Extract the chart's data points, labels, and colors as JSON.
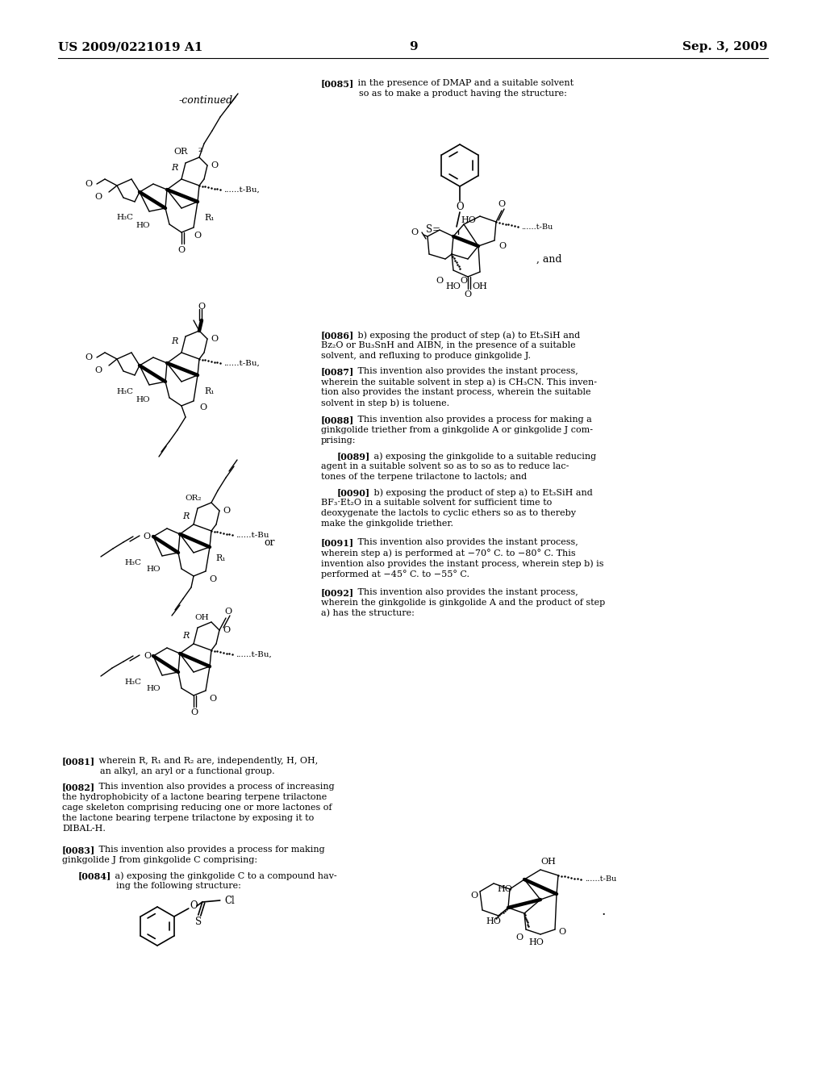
{
  "page_header_left": "US 2009/0221019 A1",
  "page_header_right": "Sep. 3, 2009",
  "page_number": "9",
  "background_color": "#ffffff",
  "text_color": "#000000",
  "font_size_header": 11,
  "font_size_body": 8.0,
  "font_size_small": 7.0,
  "continued_label": "-continued",
  "par_0081_bold": "[0081]",
  "par_0081_text": "   wherein R, R₁ and R₂ are, independently, H, OH,\n         an alkyl, an aryl or a functional group.",
  "par_0082_bold": "[0082]",
  "par_0082_text": "   This invention also provides a process of increasing\nthe hydrophobicity of a lactone bearing terpene trilactone\ncage skeleton comprising reducing one or more lactones of\nthe lactone bearing terpene trilactone by exposing it to\nDIBAL-H.",
  "par_0083_bold": "[0083]",
  "par_0083_text": "   This invention also provides a process for making\nginkgolide J from ginkgolide C comprising:",
  "par_0084_bold": "[0084]",
  "par_0084_text": "   a) exposing the ginkgolide C to a compound hav-\n         ing the following structure:",
  "par_0085_bold": "[0085]",
  "par_0085_text": "   in the presence of DMAP and a suitable solvent\n         so as to make a product having the structure:",
  "par_0086_bold": "[0086]",
  "par_0086_text": "   b) exposing the product of step (a) to Et₃SiH and\nBz₂O or Bu₃SnH and AIBN, in the presence of a suitable\nsolvent, and refluxing to produce ginkgolide J.",
  "par_0087_bold": "[0087]",
  "par_0087_text": "   This invention also provides the instant process,\nwherein the suitable solvent in step a) is CH₃CN. This inven-\ntion also provides the instant process, wherein the suitable\nsolvent in step b) is toluene.",
  "par_0088_bold": "[0088]",
  "par_0088_text": "   This invention also provides a process for making a\nginkgolide triether from a ginkgolide A or ginkgolide J com-\nprising:",
  "par_0089_bold": "[0089]",
  "par_0089_text": "   a) exposing the ginkgolide to a suitable reducing\nagent in a suitable solvent so as to so as to reduce lac-\ntones of the terpene trilactone to lactols; and",
  "par_0090_bold": "[0090]",
  "par_0090_text": "   b) exposing the product of step a) to Et₃SiH and\nBF₃·Et₂O in a suitable solvent for sufficient time to\ndeoxygenate the lactols to cyclic ethers so as to thereby\nmake the ginkgolide triether.",
  "par_0091_bold": "[0091]",
  "par_0091_text": "   This invention also provides the instant process,\nwherein step a) is performed at −70° C. to −80° C. This\ninvention also provides the instant process, wherein step b) is\nperformed at −45° C. to −55° C.",
  "par_0092_bold": "[0092]",
  "par_0092_text": "   This invention also provides the instant process,\nwherein the ginkgolide is ginkgolide A and the product of step\na) has the structure:"
}
